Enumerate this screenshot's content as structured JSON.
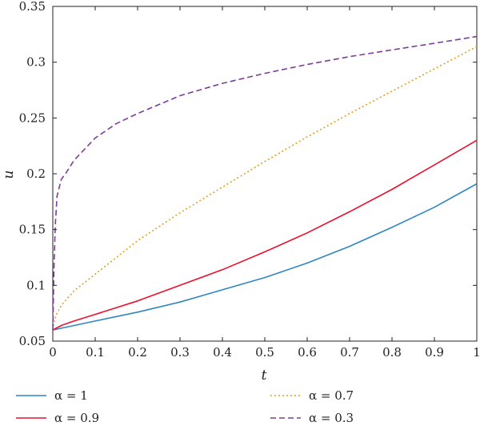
{
  "chart_data": {
    "type": "line",
    "title": "",
    "xlabel": "t",
    "ylabel": "u",
    "xlim": [
      0,
      1
    ],
    "ylim": [
      0.05,
      0.35
    ],
    "xticks": [
      0,
      0.1,
      0.2,
      0.3,
      0.4,
      0.5,
      0.6,
      0.7,
      0.8,
      0.9,
      1
    ],
    "xtick_labels": [
      "0",
      "0.1",
      "0.2",
      "0.3",
      "0.4",
      "0.5",
      "0.6",
      "0.7",
      "0.8",
      "0.9",
      "1"
    ],
    "yticks": [
      0.05,
      0.1,
      0.15,
      0.2,
      0.25,
      0.3,
      0.35
    ],
    "ytick_labels": [
      "0.05",
      "0.1",
      "0.15",
      "0.2",
      "0.25",
      "0.3",
      "0.35"
    ],
    "grid": false,
    "legend_position": "bottom",
    "series": [
      {
        "name": "α = 1",
        "color": "#2e86c1",
        "dash": "solid",
        "x": [
          0,
          0.1,
          0.2,
          0.3,
          0.4,
          0.5,
          0.6,
          0.7,
          0.8,
          0.9,
          1
        ],
        "y": [
          0.06,
          0.068,
          0.076,
          0.085,
          0.096,
          0.107,
          0.12,
          0.135,
          0.152,
          0.17,
          0.191
        ]
      },
      {
        "name": "α = 0.9",
        "color": "#e8112d",
        "dash": "solid",
        "x": [
          0,
          0.02,
          0.05,
          0.1,
          0.2,
          0.3,
          0.4,
          0.5,
          0.6,
          0.7,
          0.8,
          0.9,
          1
        ],
        "y": [
          0.06,
          0.064,
          0.068,
          0.074,
          0.086,
          0.1,
          0.114,
          0.13,
          0.147,
          0.166,
          0.186,
          0.208,
          0.23
        ]
      },
      {
        "name": "α = 0.7",
        "color": "#e0a020",
        "dash": "dotted",
        "x": [
          0,
          0.005,
          0.01,
          0.02,
          0.05,
          0.1,
          0.2,
          0.3,
          0.4,
          0.5,
          0.6,
          0.7,
          0.8,
          0.9,
          1
        ],
        "y": [
          0.06,
          0.07,
          0.075,
          0.082,
          0.095,
          0.11,
          0.14,
          0.165,
          0.188,
          0.211,
          0.233,
          0.254,
          0.274,
          0.294,
          0.314
        ]
      },
      {
        "name": "α = 0.3",
        "color": "#7d3c98",
        "dash": "dashed",
        "x": [
          0,
          0.003,
          0.006,
          0.01,
          0.02,
          0.03,
          0.05,
          0.1,
          0.15,
          0.2,
          0.3,
          0.4,
          0.5,
          0.6,
          0.7,
          0.8,
          0.9,
          1
        ],
        "y": [
          0.06,
          0.12,
          0.155,
          0.18,
          0.195,
          0.2,
          0.212,
          0.232,
          0.245,
          0.254,
          0.27,
          0.281,
          0.29,
          0.298,
          0.305,
          0.311,
          0.317,
          0.323
        ]
      }
    ]
  }
}
